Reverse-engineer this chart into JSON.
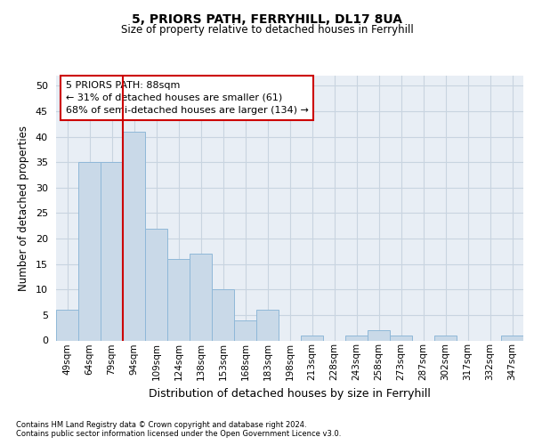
{
  "title1": "5, PRIORS PATH, FERRYHILL, DL17 8UA",
  "title2": "Size of property relative to detached houses in Ferryhill",
  "xlabel": "Distribution of detached houses by size in Ferryhill",
  "ylabel": "Number of detached properties",
  "bar_labels": [
    "49sqm",
    "64sqm",
    "79sqm",
    "94sqm",
    "109sqm",
    "124sqm",
    "138sqm",
    "153sqm",
    "168sqm",
    "183sqm",
    "198sqm",
    "213sqm",
    "228sqm",
    "243sqm",
    "258sqm",
    "273sqm",
    "287sqm",
    "302sqm",
    "317sqm",
    "332sqm",
    "347sqm"
  ],
  "bar_values": [
    6,
    35,
    35,
    41,
    22,
    16,
    17,
    10,
    4,
    6,
    0,
    1,
    0,
    1,
    2,
    1,
    0,
    1,
    0,
    0,
    1
  ],
  "bar_color": "#c9d9e8",
  "bar_edgecolor": "#8fb8d8",
  "grid_color": "#c8d4e0",
  "bg_color": "#e8eef5",
  "red_line_index": 3,
  "annotation_lines": [
    "5 PRIORS PATH: 88sqm",
    "← 31% of detached houses are smaller (61)",
    "68% of semi-detached houses are larger (134) →"
  ],
  "annotation_box_facecolor": "#ffffff",
  "annotation_box_edgecolor": "#cc0000",
  "ylim": [
    0,
    52
  ],
  "yticks": [
    0,
    5,
    10,
    15,
    20,
    25,
    30,
    35,
    40,
    45,
    50
  ],
  "footnote1": "Contains HM Land Registry data © Crown copyright and database right 2024.",
  "footnote2": "Contains public sector information licensed under the Open Government Licence v3.0."
}
